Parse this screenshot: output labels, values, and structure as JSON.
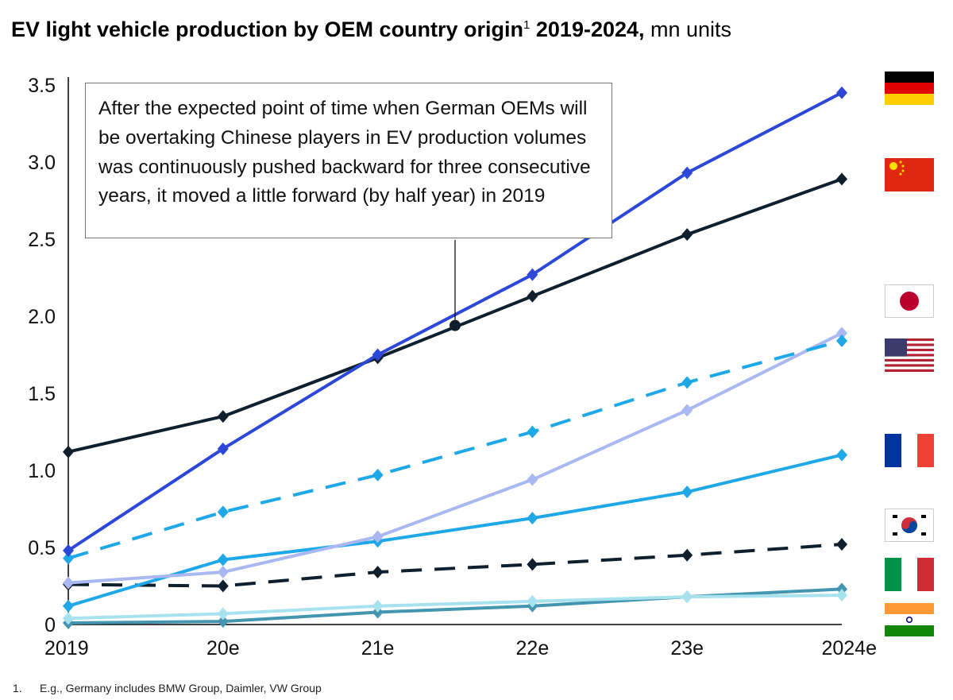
{
  "title": {
    "bold": "EV light vehicle production by OEM country origin",
    "sup": "1",
    "bold2": " 2019-2024,",
    "unit": " mn units"
  },
  "annotation": "After the expected point of time when German OEMs will be overtaking Chinese players in EV production volumes was continuously pushed backward for three consecutive years, it moved a little forward (by half year) in 2019",
  "footnote": {
    "number": "1.",
    "text": "E.g., Germany includes BMW Group, Daimler, VW Group"
  },
  "flags": [
    "germany-flag",
    "china-flag",
    "japan-flag",
    "usa-flag",
    "france-flag",
    "south-korea-flag",
    "italy-flag",
    "india-flag"
  ],
  "chart_data": {
    "type": "line",
    "title": "EV light vehicle production by OEM country origin 2019-2024, mn units",
    "categories": [
      "2019",
      "20e",
      "21e",
      "22e",
      "23e",
      "2024e"
    ],
    "yticks": [
      "0",
      "0.5",
      "1.0",
      "1.5",
      "2.0",
      "2.5",
      "3.0",
      "3.5"
    ],
    "ylim": [
      0,
      3.5
    ],
    "grid": false,
    "series": [
      {
        "values": [
          0.48,
          1.14,
          1.75,
          2.27,
          2.93,
          3.45
        ],
        "color": "#2D48D8",
        "dash": false
      },
      {
        "values": [
          1.12,
          1.35,
          1.73,
          2.13,
          2.53,
          2.89
        ],
        "color": "#0F1F2E",
        "dash": false
      },
      {
        "values": [
          0.43,
          0.73,
          0.97,
          1.25,
          1.57,
          1.84
        ],
        "color": "#1FA8E8",
        "dash": true
      },
      {
        "values": [
          0.27,
          0.34,
          0.57,
          0.94,
          1.39,
          1.89
        ],
        "color": "#AAB8F2",
        "dash": false
      },
      {
        "values": [
          0.12,
          0.42,
          0.54,
          0.69,
          0.86,
          1.1
        ],
        "color": "#1FA8E8",
        "dash": false
      },
      {
        "values": [
          0.26,
          0.25,
          0.34,
          0.39,
          0.45,
          0.52
        ],
        "color": "#0F1F2E",
        "dash": true
      },
      {
        "values": [
          0.04,
          0.07,
          0.12,
          0.15,
          0.18,
          0.19
        ],
        "color": "#A8E2EE",
        "dash": false
      },
      {
        "values": [
          0.01,
          0.02,
          0.08,
          0.12,
          0.18,
          0.23
        ],
        "color": "#4496B0",
        "dash": false
      }
    ],
    "crossover_point": {
      "x": 2021.5,
      "y": 1.94
    }
  }
}
